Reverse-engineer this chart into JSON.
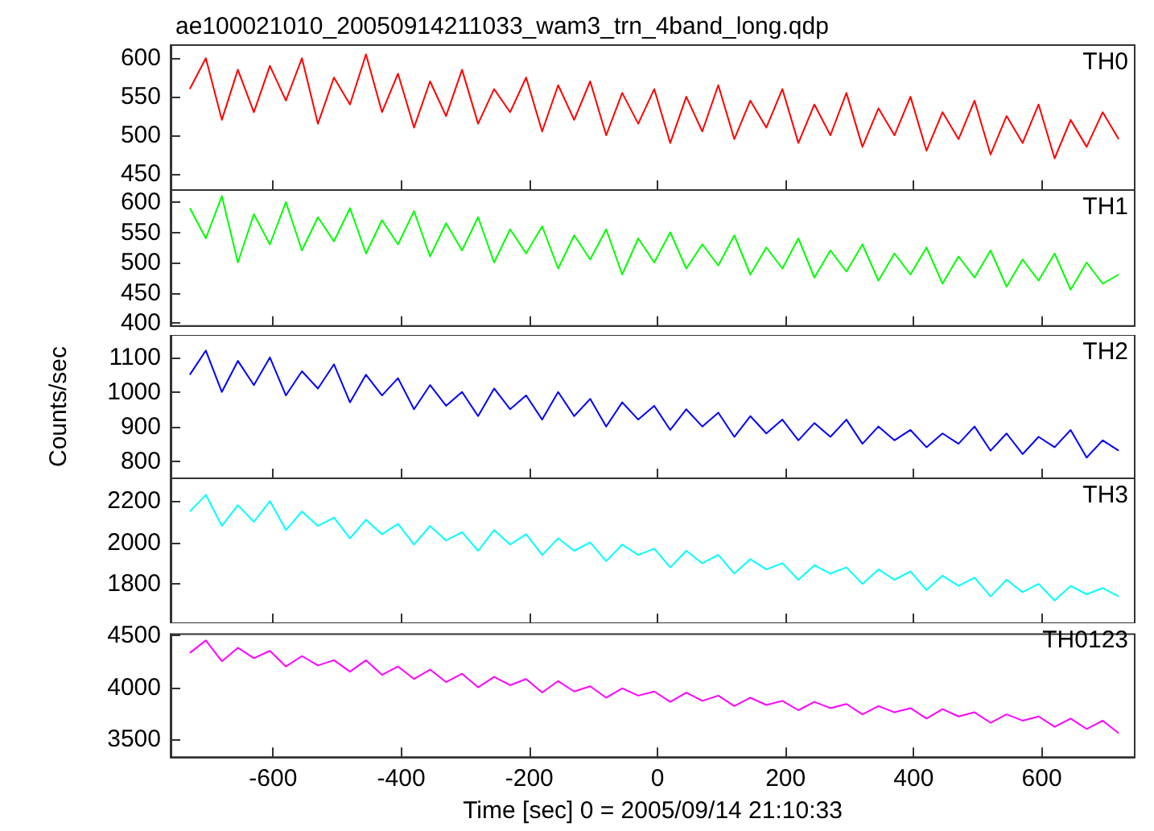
{
  "chart_data": [
    {
      "type": "line",
      "title": "ae100021010_20050914211033_wam3_trn_4band_long.qdp",
      "x": [
        -730,
        -705,
        -680,
        -655,
        -630,
        -605,
        -580,
        -555,
        -530,
        -505,
        -480,
        -455,
        -430,
        -405,
        -380,
        -355,
        -330,
        -305,
        -280,
        -255,
        -230,
        -205,
        -180,
        -155,
        -130,
        -105,
        -80,
        -55,
        -30,
        -5,
        20,
        45,
        70,
        95,
        120,
        145,
        170,
        195,
        220,
        245,
        270,
        295,
        320,
        345,
        370,
        395,
        420,
        445,
        470,
        495,
        520,
        545,
        570,
        595,
        620,
        645,
        670,
        695,
        720
      ],
      "xlim": [
        -760,
        745
      ],
      "xticks": [
        -600,
        -400,
        -200,
        0,
        200,
        400,
        600
      ],
      "ylim": [
        429,
        617
      ],
      "yticks": [
        450,
        500,
        550,
        600
      ],
      "tick_labels": "y",
      "legend": false,
      "marker": "none",
      "line_style": "solid",
      "grid": false,
      "series": [
        {
          "name": "TH0",
          "color": "#ff0000",
          "values": [
            560,
            600,
            520,
            585,
            530,
            590,
            545,
            600,
            515,
            575,
            540,
            605,
            530,
            580,
            510,
            570,
            525,
            585,
            515,
            560,
            530,
            575,
            505,
            565,
            520,
            570,
            500,
            555,
            515,
            560,
            490,
            550,
            505,
            565,
            495,
            545,
            510,
            560,
            490,
            540,
            500,
            555,
            485,
            535,
            500,
            550,
            480,
            530,
            495,
            545,
            475,
            525,
            490,
            540,
            470,
            520,
            485,
            530,
            495
          ]
        }
      ]
    },
    {
      "type": "line",
      "x": [
        -730,
        -705,
        -680,
        -655,
        -630,
        -605,
        -580,
        -555,
        -530,
        -505,
        -480,
        -455,
        -430,
        -405,
        -380,
        -355,
        -330,
        -305,
        -280,
        -255,
        -230,
        -205,
        -180,
        -155,
        -130,
        -105,
        -80,
        -55,
        -30,
        -5,
        20,
        45,
        70,
        95,
        120,
        145,
        170,
        195,
        220,
        245,
        270,
        295,
        320,
        345,
        370,
        395,
        420,
        445,
        470,
        495,
        520,
        545,
        570,
        595,
        620,
        645,
        670,
        695,
        720
      ],
      "xlim": [
        -760,
        745
      ],
      "xticks": [
        -600,
        -400,
        -200,
        0,
        200,
        400,
        600
      ],
      "ylim": [
        395,
        620
      ],
      "yticks": [
        400,
        450,
        500,
        550,
        600
      ],
      "tick_labels": "y",
      "legend": false,
      "marker": "none",
      "line_style": "solid",
      "grid": false,
      "series": [
        {
          "name": "TH1",
          "color": "#00ff00",
          "values": [
            590,
            540,
            610,
            500,
            580,
            530,
            600,
            520,
            575,
            535,
            590,
            515,
            570,
            530,
            585,
            510,
            565,
            520,
            575,
            500,
            555,
            515,
            560,
            490,
            545,
            505,
            555,
            480,
            540,
            500,
            550,
            490,
            530,
            495,
            545,
            480,
            525,
            490,
            540,
            475,
            520,
            485,
            530,
            470,
            515,
            480,
            525,
            465,
            510,
            475,
            520,
            460,
            505,
            470,
            515,
            455,
            500,
            465,
            480
          ]
        }
      ]
    },
    {
      "type": "line",
      "ylabel": "Counts/sec",
      "x": [
        -730,
        -705,
        -680,
        -655,
        -630,
        -605,
        -580,
        -555,
        -530,
        -505,
        -480,
        -455,
        -430,
        -405,
        -380,
        -355,
        -330,
        -305,
        -280,
        -255,
        -230,
        -205,
        -180,
        -155,
        -130,
        -105,
        -80,
        -55,
        -30,
        -5,
        20,
        45,
        70,
        95,
        120,
        145,
        170,
        195,
        220,
        245,
        270,
        295,
        320,
        345,
        370,
        395,
        420,
        445,
        470,
        495,
        520,
        545,
        570,
        595,
        620,
        645,
        670,
        695,
        720
      ],
      "xlim": [
        -760,
        745
      ],
      "xticks": [
        -600,
        -400,
        -200,
        0,
        200,
        400,
        600
      ],
      "ylim": [
        750,
        1165
      ],
      "yticks": [
        800,
        900,
        1000,
        1100
      ],
      "tick_labels": "y",
      "legend": false,
      "marker": "none",
      "line_style": "solid",
      "grid": false,
      "series": [
        {
          "name": "TH2",
          "color": "#0000ff",
          "values": [
            1050,
            1120,
            1000,
            1090,
            1020,
            1100,
            990,
            1060,
            1010,
            1080,
            970,
            1050,
            990,
            1040,
            950,
            1020,
            960,
            1000,
            930,
            1010,
            950,
            990,
            920,
            1000,
            930,
            980,
            900,
            970,
            920,
            960,
            890,
            950,
            900,
            940,
            870,
            930,
            880,
            920,
            860,
            910,
            870,
            920,
            850,
            900,
            860,
            890,
            840,
            880,
            850,
            900,
            830,
            880,
            820,
            870,
            840,
            890,
            810,
            860,
            830
          ]
        }
      ]
    },
    {
      "type": "line",
      "x": [
        -730,
        -705,
        -680,
        -655,
        -630,
        -605,
        -580,
        -555,
        -530,
        -505,
        -480,
        -455,
        -430,
        -405,
        -380,
        -355,
        -330,
        -305,
        -280,
        -255,
        -230,
        -205,
        -180,
        -155,
        -130,
        -105,
        -80,
        -55,
        -30,
        -5,
        20,
        45,
        70,
        95,
        120,
        145,
        170,
        195,
        220,
        245,
        270,
        295,
        320,
        345,
        370,
        395,
        420,
        445,
        470,
        495,
        520,
        545,
        570,
        595,
        620,
        645,
        670,
        695,
        720
      ],
      "xlim": [
        -760,
        745
      ],
      "xticks": [
        -600,
        -400,
        -200,
        0,
        200,
        400,
        600
      ],
      "ylim": [
        1610,
        2310
      ],
      "yticks": [
        1800,
        2000,
        2200
      ],
      "tick_labels": "y",
      "legend": false,
      "marker": "none",
      "line_style": "solid",
      "grid": false,
      "series": [
        {
          "name": "TH3",
          "color": "#00ffff",
          "values": [
            2150,
            2230,
            2080,
            2180,
            2100,
            2200,
            2060,
            2150,
            2080,
            2120,
            2020,
            2110,
            2040,
            2090,
            1990,
            2080,
            2010,
            2050,
            1960,
            2060,
            1990,
            2040,
            1940,
            2020,
            1960,
            2000,
            1910,
            1990,
            1940,
            1970,
            1880,
            1960,
            1900,
            1940,
            1850,
            1920,
            1870,
            1900,
            1820,
            1890,
            1850,
            1880,
            1800,
            1870,
            1820,
            1860,
            1770,
            1840,
            1790,
            1830,
            1740,
            1820,
            1760,
            1800,
            1720,
            1790,
            1750,
            1780,
            1740
          ]
        }
      ]
    },
    {
      "type": "line",
      "xlabel": "Time [sec] 0 = 2005/09/14 21:10:33",
      "x": [
        -730,
        -705,
        -680,
        -655,
        -630,
        -605,
        -580,
        -555,
        -530,
        -505,
        -480,
        -455,
        -430,
        -405,
        -380,
        -355,
        -330,
        -305,
        -280,
        -255,
        -230,
        -205,
        -180,
        -155,
        -130,
        -105,
        -80,
        -55,
        -30,
        -5,
        20,
        45,
        70,
        95,
        120,
        145,
        170,
        195,
        220,
        245,
        270,
        295,
        320,
        345,
        370,
        395,
        420,
        445,
        470,
        495,
        520,
        545,
        570,
        595,
        620,
        645,
        670,
        695,
        720
      ],
      "xlim": [
        -760,
        745
      ],
      "xticks": [
        -600,
        -400,
        -200,
        0,
        200,
        400,
        600
      ],
      "ylim": [
        3330,
        4510
      ],
      "yticks": [
        3500,
        4000,
        4500
      ],
      "legend": false,
      "marker": "none",
      "line_style": "solid",
      "grid": false,
      "series": [
        {
          "name": "TH0123",
          "color": "#ff00ff",
          "values": [
            4330,
            4450,
            4250,
            4380,
            4280,
            4350,
            4200,
            4300,
            4210,
            4260,
            4150,
            4260,
            4120,
            4200,
            4080,
            4170,
            4050,
            4130,
            4000,
            4100,
            4020,
            4080,
            3950,
            4060,
            3960,
            4010,
            3900,
            3990,
            3920,
            3960,
            3860,
            3950,
            3870,
            3920,
            3820,
            3900,
            3830,
            3870,
            3780,
            3860,
            3800,
            3840,
            3740,
            3820,
            3760,
            3800,
            3700,
            3790,
            3720,
            3760,
            3660,
            3740,
            3680,
            3720,
            3620,
            3700,
            3600,
            3680,
            3560
          ]
        }
      ]
    }
  ]
}
